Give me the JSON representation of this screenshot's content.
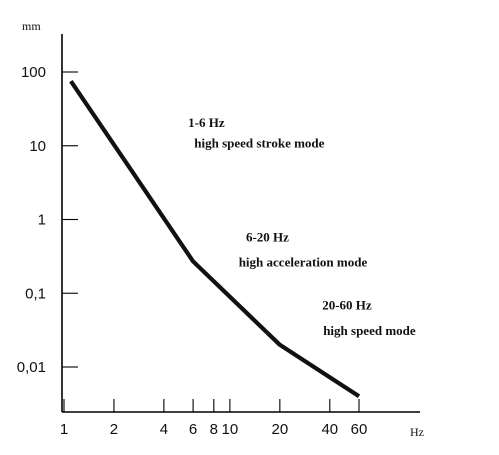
{
  "chart_data": {
    "type": "line",
    "title": "",
    "xlabel": "Hz",
    "ylabel": "mm",
    "x_scale": "log",
    "y_scale": "log",
    "xlim": [
      1,
      60
    ],
    "ylim": [
      0.002,
      300
    ],
    "x_ticks": [
      {
        "value": 1,
        "label": "1"
      },
      {
        "value": 2,
        "label": "2"
      },
      {
        "value": 4,
        "label": "4"
      },
      {
        "value": 6,
        "label": "6"
      },
      {
        "value": 8,
        "label": "8"
      },
      {
        "value": 10,
        "label": "10"
      },
      {
        "value": 20,
        "label": "20"
      },
      {
        "value": 40,
        "label": "40"
      },
      {
        "value": 60,
        "label": "60"
      }
    ],
    "y_ticks": [
      {
        "value": 100,
        "label": "100"
      },
      {
        "value": 10,
        "label": "10"
      },
      {
        "value": 1,
        "label": "1"
      },
      {
        "value": 0.1,
        "label": "0,1"
      },
      {
        "value": 0.01,
        "label": "0,01"
      }
    ],
    "grid": false,
    "series": [
      {
        "name": "",
        "x": [
          1.1,
          6,
          20,
          60
        ],
        "y": [
          75,
          0.27,
          0.02,
          0.004
        ]
      }
    ],
    "annotations": [
      {
        "text": "1-6 Hz",
        "x": 5.6,
        "y": 18
      },
      {
        "text": "high speed stroke mode",
        "x": 6.1,
        "y": 9.5
      },
      {
        "text": "6-20 Hz",
        "x": 12.5,
        "y": 0.5
      },
      {
        "text": "high acceleration mode",
        "x": 11.3,
        "y": 0.23
      },
      {
        "text": "20-60 Hz",
        "x": 36,
        "y": 0.06
      },
      {
        "text": "high speed mode",
        "x": 36.5,
        "y": 0.027
      }
    ]
  }
}
